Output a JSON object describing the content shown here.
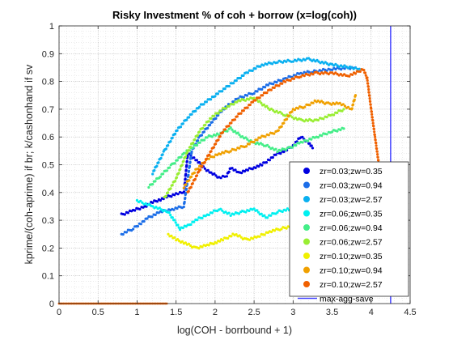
{
  "chart_data": {
    "type": "scatter",
    "title": "Risky Investment % of coh + borrow (x=log(coh))",
    "xlabel": "log(COH - borrbound + 1)",
    "ylabel": "kprime/(coh-aprime) if br; k/cashonhand if sv",
    "xlim": [
      0,
      4.5
    ],
    "ylim": [
      0,
      1
    ],
    "xticks": [
      "0",
      "0.5",
      "1",
      "1.5",
      "2",
      "2.5",
      "3",
      "3.5",
      "4",
      "4.5"
    ],
    "yticks": [
      "0",
      "0.1",
      "0.2",
      "0.3",
      "0.4",
      "0.5",
      "0.6",
      "0.7",
      "0.8",
      "0.9",
      "1"
    ],
    "grid": true,
    "minor_grid": true,
    "legend_position": "bottom-right",
    "series": [
      {
        "name": "zr=0.03;zw=0.35",
        "color": "#0000e0",
        "points": [
          [
            0.8,
            0.32
          ],
          [
            0.95,
            0.335
          ],
          [
            1.1,
            0.35
          ],
          [
            1.2,
            0.365
          ],
          [
            1.3,
            0.375
          ],
          [
            1.4,
            0.385
          ],
          [
            1.5,
            0.395
          ],
          [
            1.6,
            0.4
          ],
          [
            1.65,
            0.54
          ],
          [
            1.75,
            0.52
          ],
          [
            1.85,
            0.49
          ],
          [
            1.95,
            0.47
          ],
          [
            2.05,
            0.455
          ],
          [
            2.15,
            0.46
          ],
          [
            2.2,
            0.49
          ],
          [
            2.3,
            0.47
          ],
          [
            2.4,
            0.48
          ],
          [
            2.5,
            0.49
          ],
          [
            2.6,
            0.5
          ],
          [
            2.7,
            0.52
          ],
          [
            2.8,
            0.54
          ],
          [
            2.9,
            0.55
          ],
          [
            3.0,
            0.57
          ],
          [
            3.1,
            0.6
          ],
          [
            3.2,
            0.58
          ],
          [
            3.25,
            0.56
          ]
        ]
      },
      {
        "name": "zr=0.03;zw=0.94",
        "color": "#1c6ee8",
        "points": [
          [
            0.8,
            0.25
          ],
          [
            0.95,
            0.27
          ],
          [
            1.05,
            0.29
          ],
          [
            1.15,
            0.31
          ],
          [
            1.3,
            0.33
          ],
          [
            1.45,
            0.34
          ],
          [
            1.6,
            0.35
          ],
          [
            1.7,
            0.55
          ],
          [
            1.8,
            0.6
          ],
          [
            1.95,
            0.65
          ],
          [
            2.1,
            0.7
          ],
          [
            2.3,
            0.74
          ],
          [
            2.5,
            0.76
          ],
          [
            2.7,
            0.79
          ],
          [
            2.9,
            0.81
          ],
          [
            3.1,
            0.83
          ],
          [
            3.25,
            0.835
          ],
          [
            3.5,
            0.845
          ],
          [
            3.8,
            0.85
          ]
        ]
      },
      {
        "name": "zr=0.03;zw=2.57",
        "color": "#0ab0f0",
        "points": [
          [
            1.2,
            0.47
          ],
          [
            1.35,
            0.55
          ],
          [
            1.5,
            0.62
          ],
          [
            1.65,
            0.67
          ],
          [
            1.8,
            0.71
          ],
          [
            2.0,
            0.75
          ],
          [
            2.2,
            0.79
          ],
          [
            2.4,
            0.83
          ],
          [
            2.6,
            0.86
          ],
          [
            2.8,
            0.87
          ],
          [
            3.0,
            0.875
          ],
          [
            3.2,
            0.88
          ],
          [
            3.5,
            0.86
          ],
          [
            3.75,
            0.85
          ],
          [
            3.85,
            0.845
          ]
        ]
      },
      {
        "name": "zr=0.06;zw=0.35",
        "color": "#00f0f0",
        "points": [
          [
            1.0,
            0.37
          ],
          [
            1.2,
            0.35
          ],
          [
            1.4,
            0.33
          ],
          [
            1.55,
            0.27
          ],
          [
            1.65,
            0.28
          ],
          [
            1.75,
            0.3
          ],
          [
            1.9,
            0.32
          ],
          [
            2.05,
            0.34
          ],
          [
            2.2,
            0.32
          ],
          [
            2.35,
            0.33
          ],
          [
            2.5,
            0.34
          ],
          [
            2.65,
            0.31
          ],
          [
            2.8,
            0.33
          ],
          [
            2.95,
            0.34
          ],
          [
            3.1,
            0.36
          ],
          [
            3.25,
            0.38
          ],
          [
            3.4,
            0.41
          ],
          [
            3.55,
            0.43
          ],
          [
            3.7,
            0.44
          ]
        ]
      },
      {
        "name": "zr=0.06;zw=0.94",
        "color": "#44ee88",
        "points": [
          [
            1.15,
            0.42
          ],
          [
            1.3,
            0.46
          ],
          [
            1.45,
            0.5
          ],
          [
            1.6,
            0.54
          ],
          [
            1.75,
            0.57
          ],
          [
            1.9,
            0.6
          ],
          [
            2.05,
            0.61
          ],
          [
            2.2,
            0.63
          ],
          [
            2.35,
            0.6
          ],
          [
            2.5,
            0.58
          ],
          [
            2.65,
            0.57
          ],
          [
            2.8,
            0.55
          ],
          [
            2.95,
            0.56
          ],
          [
            3.1,
            0.58
          ],
          [
            3.3,
            0.6
          ],
          [
            3.5,
            0.62
          ],
          [
            3.65,
            0.63
          ]
        ]
      },
      {
        "name": "zr=0.06;zw=2.57",
        "color": "#99ee33",
        "points": [
          [
            1.35,
            0.38
          ],
          [
            1.5,
            0.45
          ],
          [
            1.65,
            0.55
          ],
          [
            1.8,
            0.62
          ],
          [
            1.95,
            0.67
          ],
          [
            2.1,
            0.7
          ],
          [
            2.3,
            0.73
          ],
          [
            2.5,
            0.74
          ],
          [
            2.7,
            0.7
          ],
          [
            2.9,
            0.68
          ],
          [
            3.1,
            0.66
          ],
          [
            3.3,
            0.66
          ],
          [
            3.5,
            0.68
          ],
          [
            3.65,
            0.7
          ]
        ]
      },
      {
        "name": "zr=0.10;zw=0.35",
        "color": "#f0f000",
        "points": [
          [
            1.4,
            0.25
          ],
          [
            1.5,
            0.23
          ],
          [
            1.6,
            0.22
          ],
          [
            1.75,
            0.2
          ],
          [
            1.9,
            0.21
          ],
          [
            2.0,
            0.22
          ],
          [
            2.1,
            0.23
          ],
          [
            2.25,
            0.25
          ],
          [
            2.4,
            0.23
          ],
          [
            2.55,
            0.24
          ],
          [
            2.7,
            0.26
          ],
          [
            2.85,
            0.27
          ],
          [
            3.0,
            0.28
          ],
          [
            3.1,
            0.3
          ],
          [
            3.2,
            0.32
          ],
          [
            3.3,
            0.34
          ]
        ]
      },
      {
        "name": "zr=0.10;zw=0.94",
        "color": "#f0a000",
        "points": [
          [
            1.6,
            0.42
          ],
          [
            1.75,
            0.48
          ],
          [
            1.9,
            0.52
          ],
          [
            2.05,
            0.54
          ],
          [
            2.2,
            0.55
          ],
          [
            2.4,
            0.57
          ],
          [
            2.6,
            0.6
          ],
          [
            2.8,
            0.62
          ],
          [
            3.0,
            0.7
          ],
          [
            3.15,
            0.71
          ],
          [
            3.3,
            0.73
          ],
          [
            3.45,
            0.72
          ],
          [
            3.6,
            0.72
          ],
          [
            3.75,
            0.7
          ],
          [
            3.8,
            0.75
          ]
        ]
      },
      {
        "name": "zr=0.10;zw=2.57",
        "color": "#f06000",
        "points": [
          [
            1.65,
            0.4
          ],
          [
            1.8,
            0.48
          ],
          [
            1.95,
            0.55
          ],
          [
            2.1,
            0.62
          ],
          [
            2.3,
            0.68
          ],
          [
            2.5,
            0.73
          ],
          [
            2.7,
            0.77
          ],
          [
            2.9,
            0.8
          ],
          [
            3.1,
            0.82
          ],
          [
            3.3,
            0.83
          ],
          [
            3.5,
            0.83
          ],
          [
            3.7,
            0.82
          ],
          [
            3.8,
            0.83
          ],
          [
            3.9,
            0.845
          ],
          [
            3.95,
            0.81
          ],
          [
            4.0,
            0.7
          ],
          [
            4.05,
            0.6
          ],
          [
            4.1,
            0.5
          ],
          [
            4.15,
            0.4
          ],
          [
            4.2,
            0.3
          ],
          [
            4.3,
            0.2
          ],
          [
            4.4,
            0.1
          ]
        ]
      }
    ],
    "baseline_points": {
      "color": "#f06000",
      "x_from": 0,
      "x_to": 1.4,
      "y": 0
    },
    "reference_line": {
      "name": "max-agg-save",
      "color": "#4040ff",
      "x": 4.25
    }
  }
}
